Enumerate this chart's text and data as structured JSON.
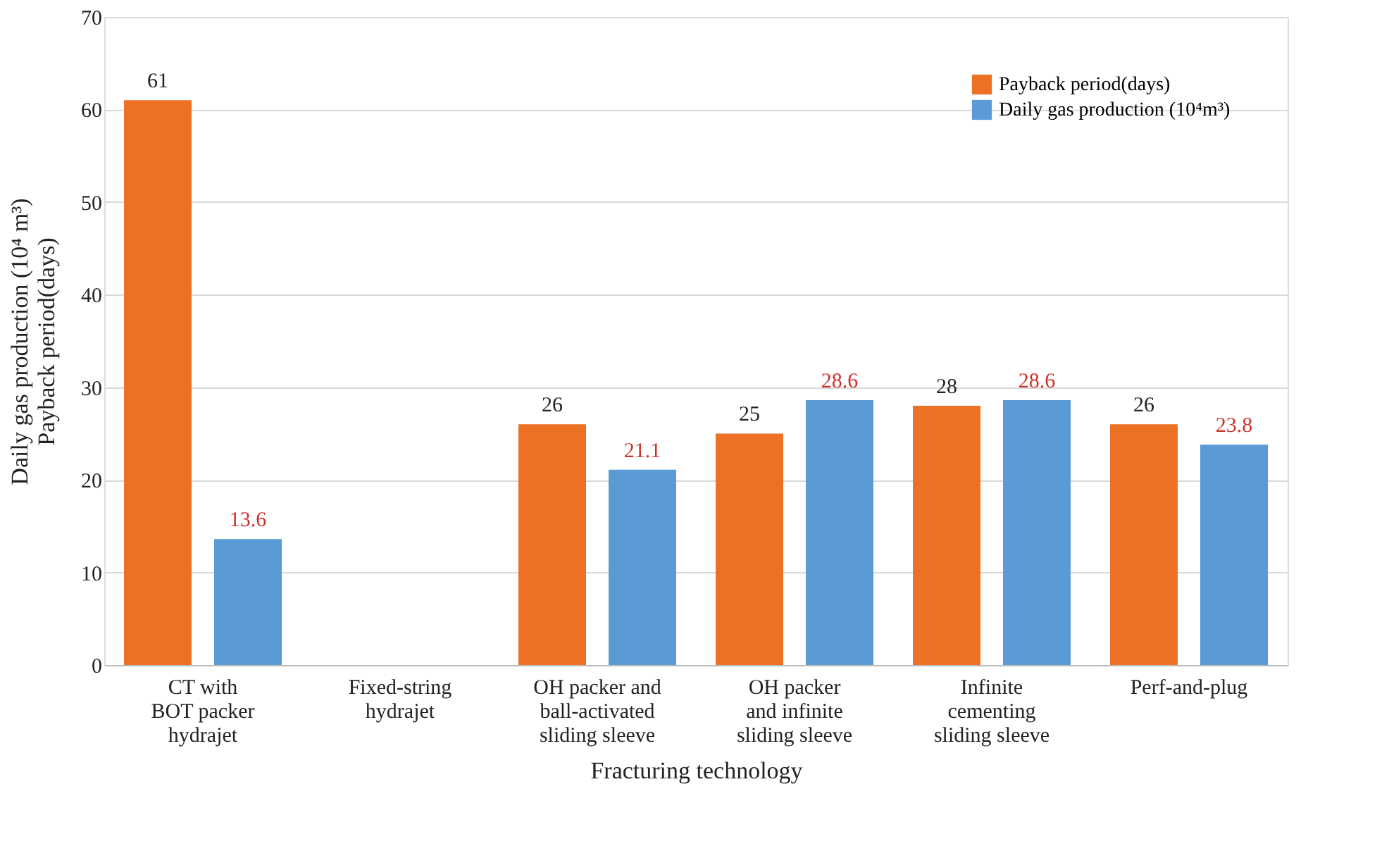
{
  "chart_data": {
    "type": "bar",
    "xlabel": "Fracturing technology",
    "ylabel": "Daily gas production (10⁴ m³)\nPayback period(days)",
    "categories": [
      "CT with\nBOT packer\nhydrajet",
      "Fixed-string\nhydrajet",
      "OH packer and\nball-activated\nsliding sleeve",
      "OH packer\nand infinite\nsliding sleeve",
      "Infinite\ncementing\nsliding sleeve",
      "Perf-and-plug"
    ],
    "series": [
      {
        "name": "Payback period(days)",
        "color": "#ed7125",
        "values": [
          61,
          null,
          26,
          25,
          28,
          26
        ],
        "value_labels": [
          "61",
          null,
          "26",
          "25",
          "28",
          "26"
        ]
      },
      {
        "name": "Daily gas production (10⁴m³)",
        "color": "#5b9bd5",
        "values": [
          13.6,
          null,
          21.1,
          28.6,
          28.6,
          23.8
        ],
        "value_labels": [
          "13.6",
          null,
          "21.1",
          "28.6",
          "28.6",
          "23.8"
        ]
      }
    ],
    "ylim": [
      0,
      70
    ],
    "yticks": [
      0,
      10,
      20,
      30,
      40,
      50,
      60,
      70
    ],
    "grid": "y",
    "legend": "top right"
  }
}
